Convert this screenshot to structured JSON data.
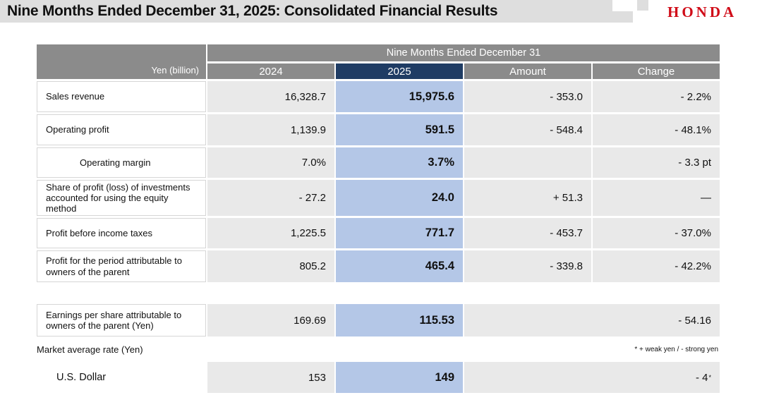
{
  "page": {
    "title": "Nine Months Ended December 31, 2025: Consolidated Financial Results",
    "brand": "HONDA"
  },
  "colors": {
    "title_band": "#dedede",
    "header_gray": "#8b8b8b",
    "header_navy": "#1f3c64",
    "highlight_blue": "#b4c7e7",
    "cell_gray": "#e9e9e9",
    "honda_red": "#d00c18"
  },
  "table": {
    "unit_label": "Yen (billion)",
    "group_header": "Nine Months Ended December 31",
    "columns": [
      "2024",
      "2025",
      "Amount",
      "Change"
    ],
    "rows": [
      {
        "label": "Sales revenue",
        "indent": false,
        "v2024": "16,328.7",
        "v2025": "15,975.6",
        "amount": "- 353.0",
        "change": "- 2.2%"
      },
      {
        "label": "Operating profit",
        "indent": false,
        "v2024": "1,139.9",
        "v2025": "591.5",
        "amount": "- 548.4",
        "change": "- 48.1%"
      },
      {
        "label": "Operating margin",
        "indent": true,
        "v2024": "7.0%",
        "v2025": "3.7%",
        "amount": "",
        "change": "- 3.3 pt"
      },
      {
        "label": "Share of profit (loss) of investments accounted for using the equity method",
        "indent": false,
        "v2024": "- 27.2",
        "v2025": "24.0",
        "amount": "+ 51.3",
        "change": "—"
      },
      {
        "label": "Profit before income taxes",
        "indent": false,
        "v2024": "1,225.5",
        "v2025": "771.7",
        "amount": "- 453.7",
        "change": "- 37.0%"
      },
      {
        "label": "Profit for the period attributable to owners of the parent",
        "indent": false,
        "v2024": "805.2",
        "v2025": "465.4",
        "amount": "- 339.8",
        "change": "- 42.2%"
      }
    ],
    "eps_row": {
      "label": "Earnings per share attributable to owners of the parent (Yen)",
      "v2024": "169.69",
      "v2025": "115.53",
      "merged_change": "- 54.16"
    },
    "market_rate": {
      "label": "Market average rate (Yen)",
      "footnote": "* + weak yen / - strong yen",
      "usd_row": {
        "label": "U.S. Dollar",
        "v2024": "153",
        "v2025": "149",
        "merged_change": "- 4",
        "change_superscript": "*"
      }
    }
  }
}
